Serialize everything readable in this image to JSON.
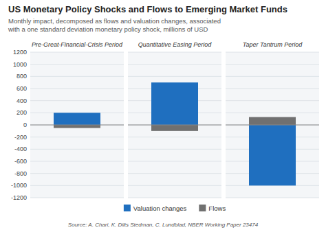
{
  "chart_data": {
    "type": "bar",
    "title": "US Monetary Policy Shocks and Flows to Emerging Market Funds",
    "subtitle": "Monthly impact, decomposed as flows and valuation changes, associated\nwith a one standard deviation monetary policy shock, millions of USD",
    "source": "Source: A. Chari, K. Dilts Stedman, C. Lundblad, NBER Working Paper 23474",
    "categories": [
      "Pre-Great-Financial-Crisis Period",
      "Quantitative Easing Period",
      "Taper Tantrum Period"
    ],
    "series": [
      {
        "name": "Valuation changes",
        "color": "#1F6FBF",
        "values": [
          200,
          700,
          -1000
        ]
      },
      {
        "name": "Flows",
        "color": "#707070",
        "values": [
          -50,
          -100,
          130
        ]
      }
    ],
    "ylim": [
      -1200,
      1200
    ],
    "yticks": [
      -1200,
      -1000,
      -800,
      -600,
      -400,
      -200,
      0,
      200,
      400,
      600,
      800,
      1000,
      1200
    ],
    "grid": true,
    "legend": "bottom"
  }
}
